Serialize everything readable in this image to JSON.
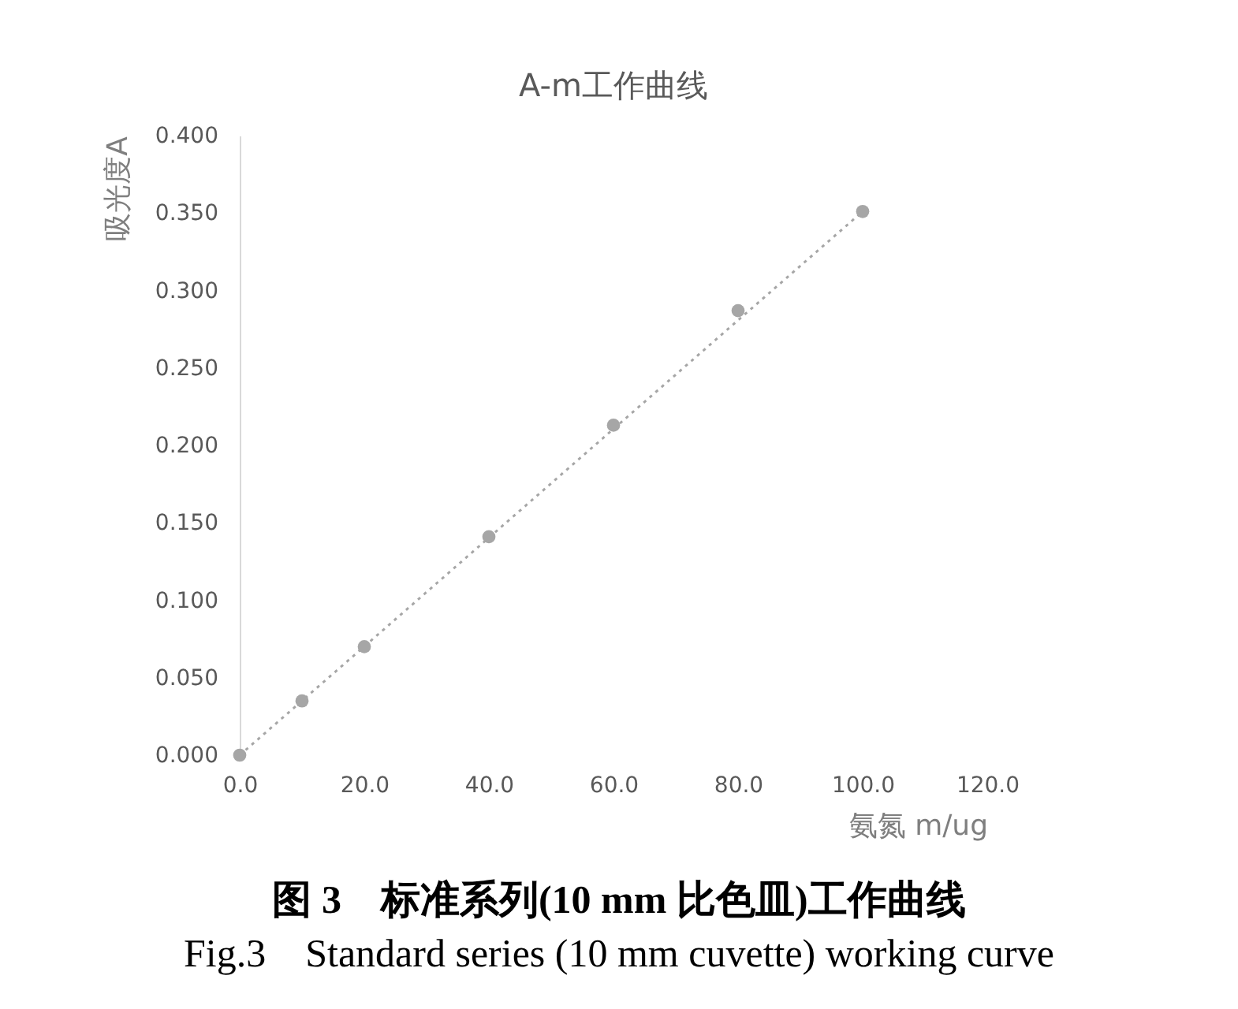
{
  "chart_data": {
    "type": "scatter",
    "title": "A-m工作曲线",
    "xlabel": "氨氮 m/ug",
    "ylabel": "吸光度A",
    "annotations": [
      "图 3　标准系列(10 mm 比色皿)工作曲线",
      "Fig.3　Standard series (10 mm cuvette) working curve"
    ],
    "xlim": [
      0,
      120
    ],
    "ylim": [
      0,
      0.4
    ],
    "xticks": [
      {
        "value": 0,
        "label": "0.0"
      },
      {
        "value": 20,
        "label": "20.0"
      },
      {
        "value": 40,
        "label": "40.0"
      },
      {
        "value": 60,
        "label": "60.0"
      },
      {
        "value": 80,
        "label": "80.0"
      },
      {
        "value": 100,
        "label": "100.0"
      },
      {
        "value": 120,
        "label": "120.0"
      }
    ],
    "yticks": [
      {
        "value": 0,
        "label": "0.000"
      },
      {
        "value": 0.05,
        "label": "0.050"
      },
      {
        "value": 0.1,
        "label": "0.100"
      },
      {
        "value": 0.15,
        "label": "0.150"
      },
      {
        "value": 0.2,
        "label": "0.200"
      },
      {
        "value": 0.25,
        "label": "0.250"
      },
      {
        "value": 0.3,
        "label": "0.300"
      },
      {
        "value": 0.35,
        "label": "0.350"
      },
      {
        "value": 0.4,
        "label": "0.400"
      }
    ],
    "series": [
      {
        "type": "line",
        "line_style": "dotted",
        "color": "#a6a6a6",
        "x": [
          0,
          100
        ],
        "values": [
          0,
          0.351
        ]
      },
      {
        "marker": "circle",
        "color": "#a6a6a6",
        "x": [
          0,
          10,
          20,
          40,
          60,
          80,
          100
        ],
        "values": [
          0,
          0.035,
          0.07,
          0.141,
          0.213,
          0.287,
          0.351
        ]
      }
    ]
  }
}
